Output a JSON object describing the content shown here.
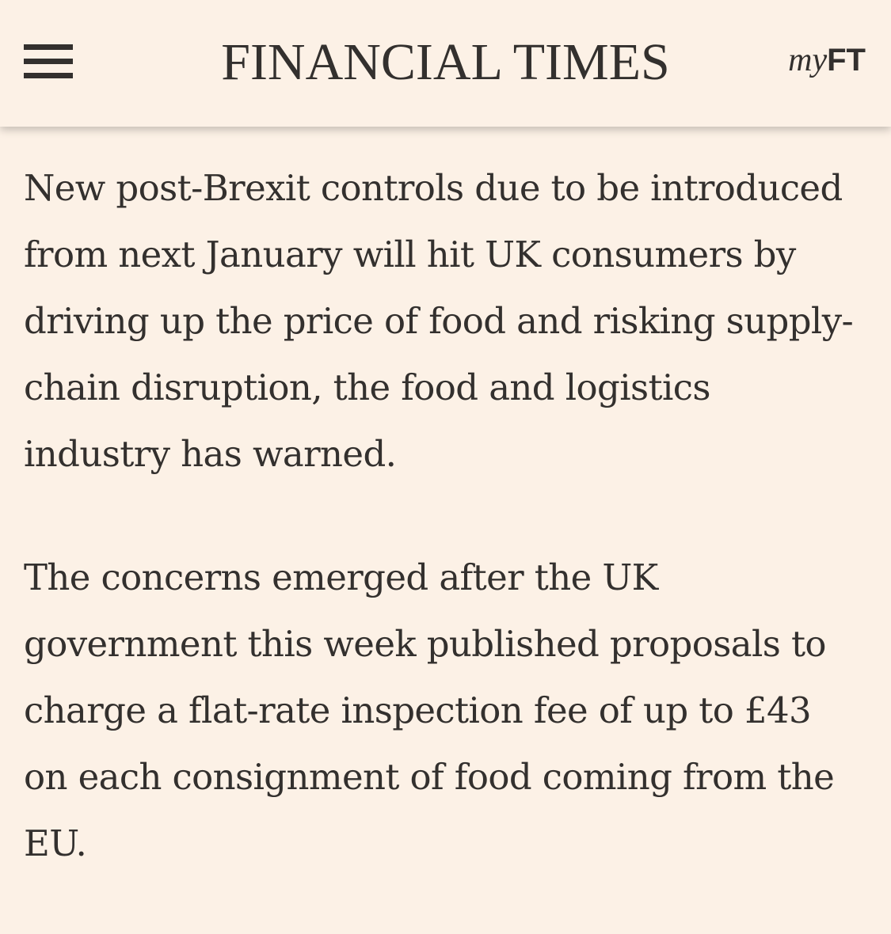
{
  "header": {
    "masthead": "FINANCIAL TIMES",
    "myft_prefix": "my",
    "myft_suffix": "FT",
    "menu_icon": "hamburger-menu-icon"
  },
  "article": {
    "paragraphs": [
      "New post-Brexit controls due to be introduced from next January will hit UK consumers by driving up the price of food and risking supply-chain disruption, the food and logistics industry has warned.",
      "The concerns emerged after the UK government this week published proposals to charge a flat-rate inspection fee of up to £43 on each consignment of food coming from the EU."
    ]
  },
  "colors": {
    "background": "#fcf1e6",
    "text": "#33302e"
  }
}
